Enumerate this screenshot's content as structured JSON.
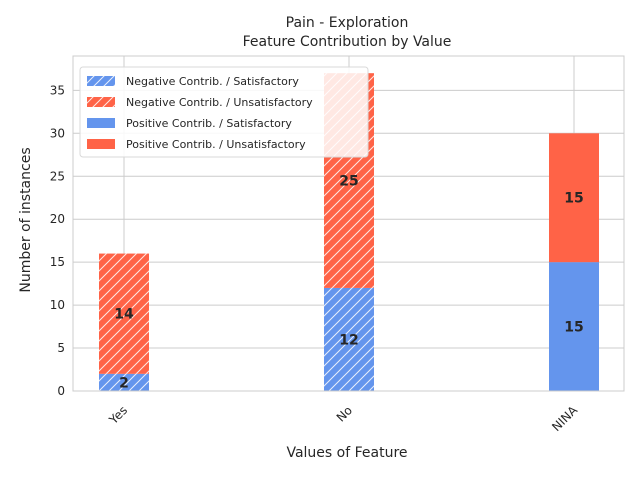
{
  "chart_data": {
    "type": "bar",
    "stacked": true,
    "title_line1": "Pain - Exploration",
    "title_line2": "Feature Contribution by Value",
    "xlabel": "Values of Feature",
    "ylabel": "Number of instances",
    "categories": [
      "Yes",
      "No",
      "NINA"
    ],
    "ylim": [
      0,
      39
    ],
    "yticks": [
      0,
      5,
      10,
      15,
      20,
      25,
      30,
      35
    ],
    "grid": true,
    "legend_position": "top-left",
    "series": [
      {
        "name": "Negative Contrib. / Satisfactory",
        "group": "negative",
        "color": "#6495ED",
        "hatch": true,
        "values": [
          2,
          12,
          null
        ]
      },
      {
        "name": "Negative Contrib. / Unsatisfactory",
        "group": "negative",
        "color": "#FF6347",
        "hatch": true,
        "values": [
          14,
          25,
          null
        ]
      },
      {
        "name": "Positive Contrib. / Satisfactory",
        "group": "positive",
        "color": "#6495ED",
        "hatch": false,
        "values": [
          null,
          null,
          15
        ]
      },
      {
        "name": "Positive Contrib. / Unsatisfactory",
        "group": "positive",
        "color": "#FF6347",
        "hatch": false,
        "values": [
          null,
          null,
          15
        ]
      }
    ]
  }
}
